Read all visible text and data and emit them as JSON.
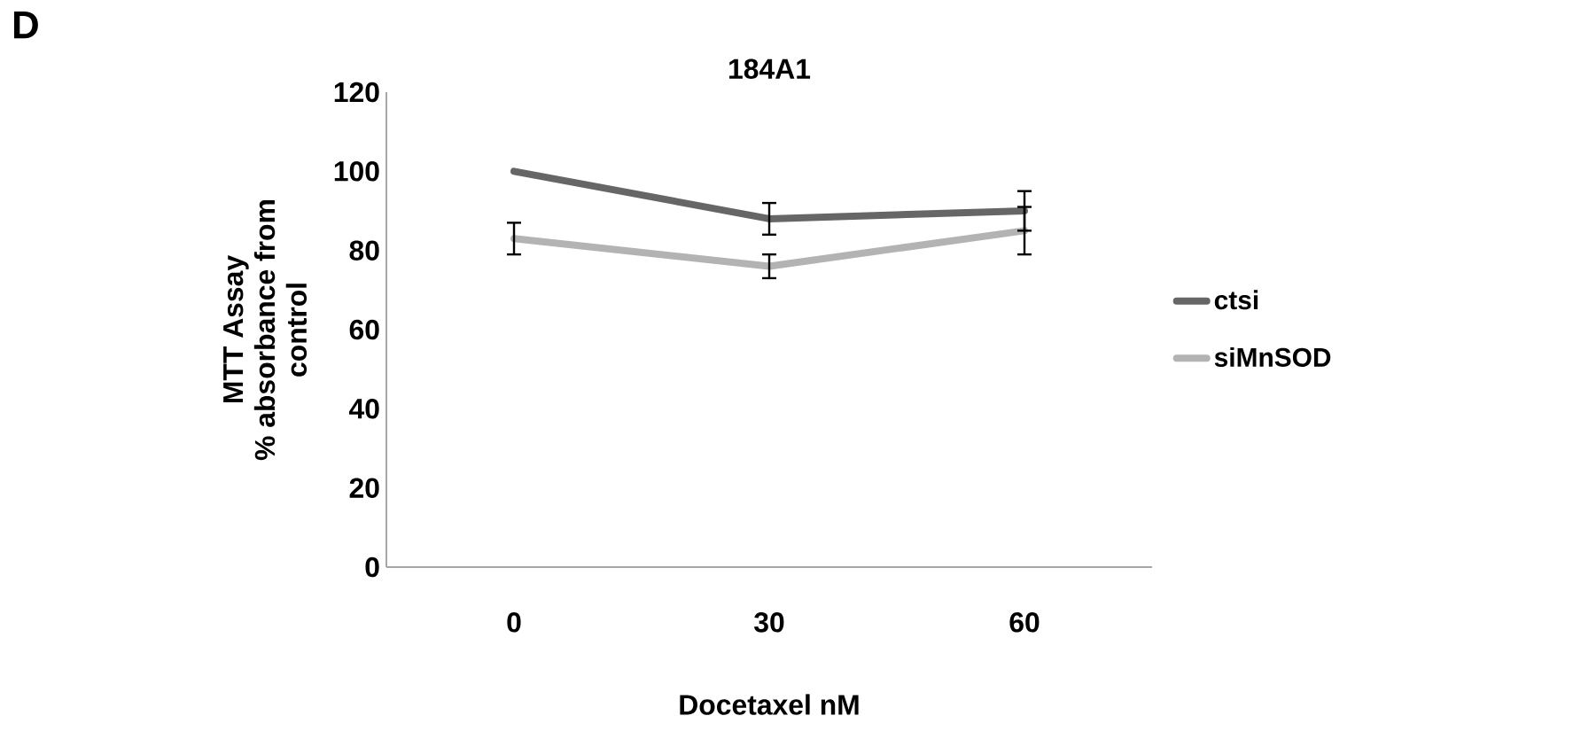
{
  "chart_data": {
    "type": "line",
    "title": "184A1",
    "xlabel": "Docetaxel nM",
    "ylabel": "MTT Assay\n% absorbance from\ncontrol",
    "annotations": [
      "D"
    ],
    "categories": [
      "0",
      "30",
      "60"
    ],
    "series": [
      {
        "name": "ctsi",
        "color": "#666666",
        "values": [
          100,
          88,
          90
        ],
        "errors": [
          null,
          4,
          5
        ]
      },
      {
        "name": "siMnSOD",
        "color": "#b3b3b3",
        "values": [
          83,
          76,
          85
        ],
        "errors": [
          4,
          3,
          6
        ]
      }
    ],
    "ylim": [
      0,
      120
    ],
    "yticks": [
      0,
      20,
      40,
      60,
      80,
      100,
      120
    ],
    "grid": false,
    "legend": "right",
    "marker": "none",
    "line_style": "solid"
  }
}
